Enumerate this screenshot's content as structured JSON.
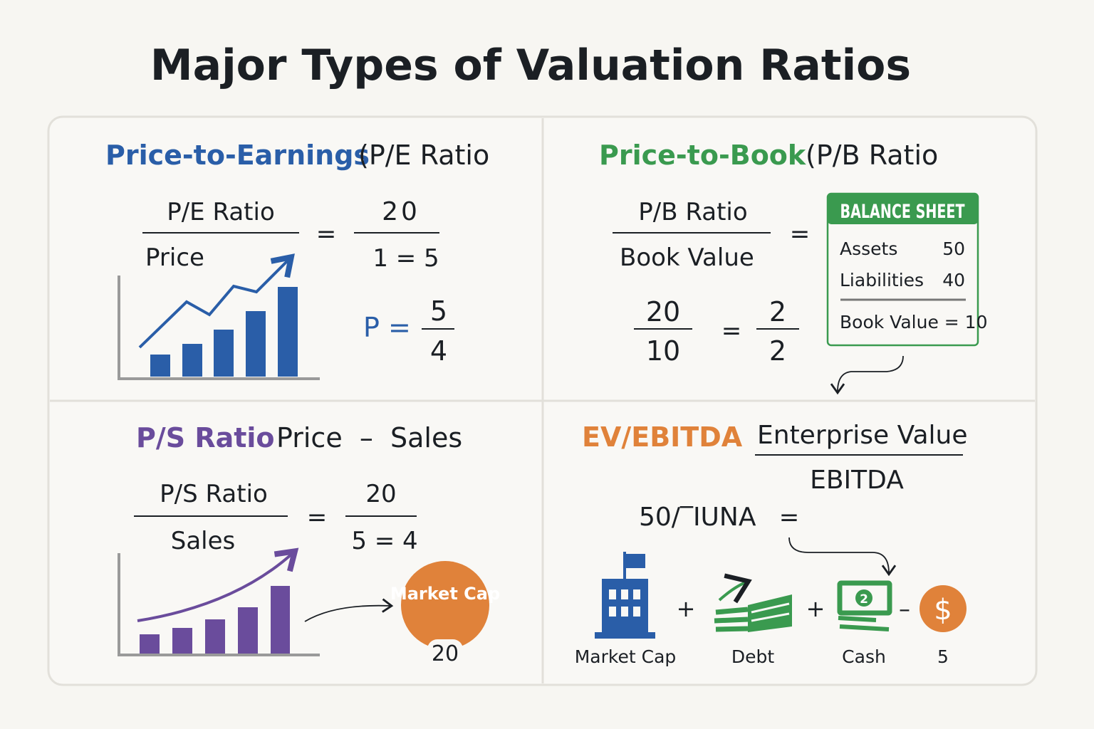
{
  "title": "Major Types of Valuation Ratios",
  "colors": {
    "pe": "#2a5ea8",
    "pb": "#3a9a4f",
    "ps": "#6a4c9c",
    "ev": "#e0823a",
    "text": "#1b1f24",
    "background": "#f7f6f2"
  },
  "pe": {
    "heading": "Price-to-Earnings",
    "subheading": "(P/E Ratio",
    "fraction_top": "P/E Ratio",
    "fraction_bottom": "Price",
    "equals": "=",
    "rhs_top": "20",
    "rhs_bottom": "1 = 5",
    "p_label": "P =",
    "p_top": "5",
    "p_bottom": "4",
    "chart_icon": "bar-chart-rising-line-icon"
  },
  "pb": {
    "heading": "Price-to-Book",
    "subheading": "(P/B Ratio",
    "fraction_top": "P/B Ratio",
    "fraction_bottom": "Book Value",
    "equals": "=",
    "ex_top": "20",
    "ex_bottom": "10",
    "ex_equals": "=",
    "ex2_top": "2",
    "ex2_bottom": "2",
    "balance_sheet": {
      "header": "BALANCE SHEET",
      "rows": [
        {
          "label": "Assets",
          "value": "50"
        },
        {
          "label": "Liabilities",
          "value": "40"
        }
      ],
      "total": "Book Value = 10"
    }
  },
  "ps": {
    "heading": "P/S Ratio",
    "subheading": "Price  –  Sales",
    "fraction_top": "P/S Ratio",
    "fraction_bottom": "Sales",
    "equals": "=",
    "rhs_top": "20",
    "rhs_bottom": "5 = 4",
    "market_cap_label": "Market Cap",
    "market_cap_value": "20"
  },
  "ev": {
    "heading": "EV/EBITDA",
    "fraction_top": "Enterprise Value",
    "fraction_bottom": "EBITDA",
    "expression": "50/‾IUNA",
    "equals": "=",
    "components": [
      {
        "label": "Market Cap",
        "icon": "building-icon",
        "operator": "+"
      },
      {
        "label": "Debt",
        "icon": "money-stack-icon",
        "operator": "+"
      },
      {
        "label": "Cash",
        "icon": "cash-icon",
        "operator": "–"
      },
      {
        "label": "5",
        "icon": "dollar-coin-icon"
      }
    ],
    "cash_badge": "2",
    "coin_symbol": "$"
  }
}
